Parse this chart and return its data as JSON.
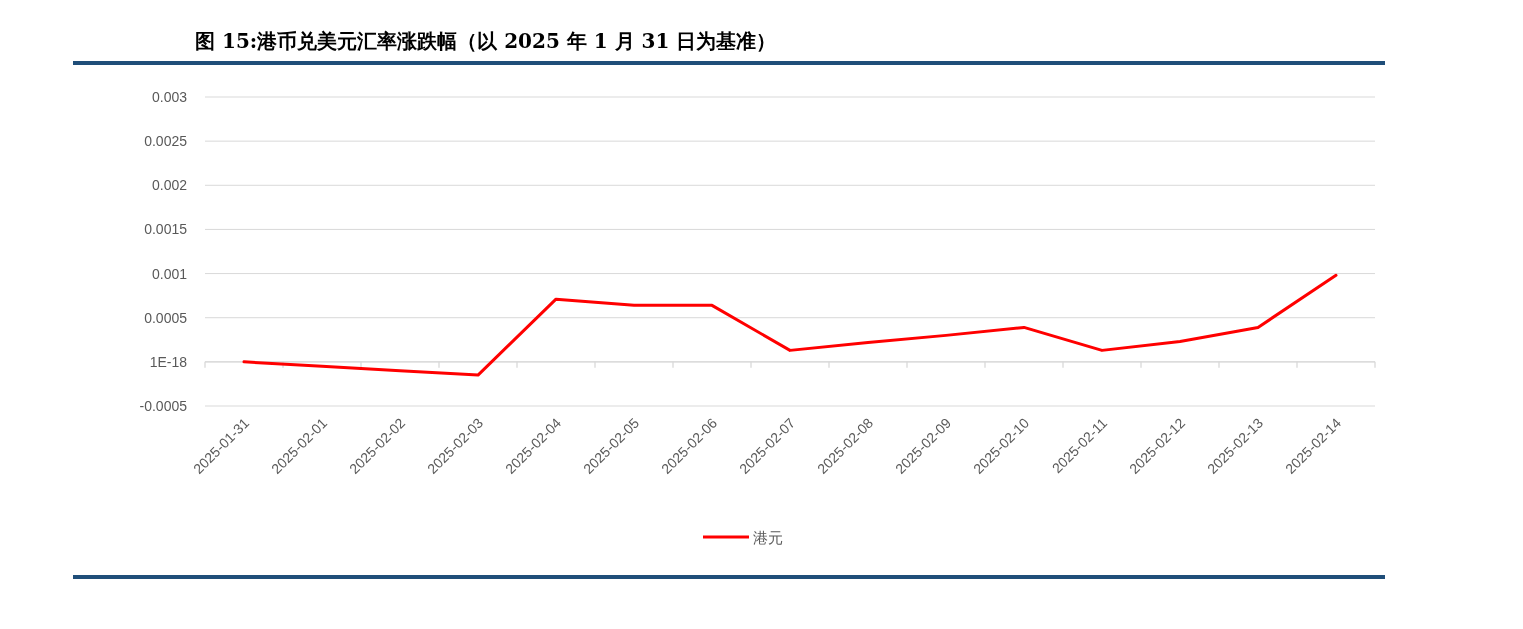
{
  "chart_data": {
    "type": "line",
    "title": "图 15:港币兑美元汇率涨跌幅（以 2025 年 1 月 31 日为基准）",
    "categories": [
      "2025-01-31",
      "2025-02-01",
      "2025-02-02",
      "2025-02-03",
      "2025-02-04",
      "2025-02-05",
      "2025-02-06",
      "2025-02-07",
      "2025-02-08",
      "2025-02-09",
      "2025-02-10",
      "2025-02-11",
      "2025-02-12",
      "2025-02-13",
      "2025-02-14"
    ],
    "series": [
      {
        "name": "港元",
        "color": "#ff0000",
        "values": [
          0,
          -5e-05,
          -0.0001,
          -0.00015,
          0.00071,
          0.00064,
          0.00064,
          0.00013,
          0.00022,
          0.0003,
          0.00039,
          0.00013,
          0.00023,
          0.00039,
          0.00098
        ]
      }
    ],
    "ylim": [
      -0.0005,
      0.003
    ],
    "yticks": [
      -0.0005,
      {
        "value": 0,
        "label": "1E-18"
      },
      0.0005,
      0.001,
      0.0015,
      0.002,
      0.0025,
      0.003
    ],
    "grid": "y",
    "legend": "bottom",
    "marker": "none",
    "line_style": "solid"
  }
}
